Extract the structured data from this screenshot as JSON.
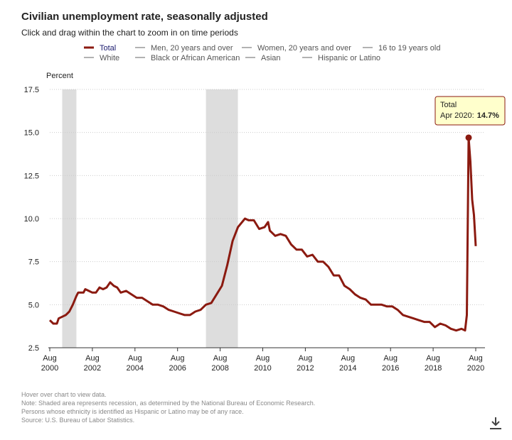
{
  "chart_data": {
    "type": "line",
    "title": "Civilian unemployment rate, seasonally adjusted",
    "subtitle": "Click and drag within the chart to zoom in on time periods",
    "y_label": "Percent",
    "x": [
      "2000-08",
      "2000-10",
      "2000-12",
      "2001-01",
      "2001-03",
      "2001-05",
      "2001-07",
      "2001-09",
      "2001-11",
      "2001-12",
      "2002-03",
      "2002-04",
      "2002-06",
      "2002-08",
      "2002-10",
      "2002-12",
      "2003-02",
      "2003-04",
      "2003-06",
      "2003-08",
      "2003-10",
      "2003-12",
      "2004-03",
      "2004-06",
      "2004-09",
      "2004-12",
      "2005-03",
      "2005-06",
      "2005-09",
      "2005-12",
      "2006-03",
      "2006-06",
      "2006-09",
      "2006-12",
      "2007-03",
      "2007-06",
      "2007-09",
      "2007-12",
      "2008-03",
      "2008-06",
      "2008-09",
      "2008-12",
      "2009-03",
      "2009-06",
      "2009-10",
      "2009-12",
      "2010-03",
      "2010-06",
      "2010-09",
      "2010-11",
      "2010-12",
      "2011-03",
      "2011-06",
      "2011-09",
      "2011-12",
      "2012-03",
      "2012-06",
      "2012-09",
      "2012-12",
      "2013-03",
      "2013-06",
      "2013-09",
      "2013-12",
      "2014-03",
      "2014-06",
      "2014-09",
      "2014-12",
      "2015-03",
      "2015-06",
      "2015-09",
      "2015-12",
      "2016-03",
      "2016-06",
      "2016-09",
      "2016-12",
      "2017-03",
      "2017-06",
      "2017-09",
      "2017-12",
      "2018-03",
      "2018-06",
      "2018-09",
      "2018-12",
      "2019-03",
      "2019-06",
      "2019-09",
      "2019-12",
      "2020-02",
      "2020-03",
      "2020-04",
      "2020-05",
      "2020-06",
      "2020-07",
      "2020-08"
    ],
    "series": [
      {
        "name": "Total",
        "color": "#8b1a10",
        "values": [
          4.1,
          3.9,
          3.9,
          4.2,
          4.3,
          4.4,
          4.6,
          5.0,
          5.5,
          5.7,
          5.7,
          5.9,
          5.8,
          5.7,
          5.7,
          6.0,
          5.9,
          6.0,
          6.3,
          6.1,
          6.0,
          5.7,
          5.8,
          5.6,
          5.4,
          5.4,
          5.2,
          5.0,
          5.0,
          4.9,
          4.7,
          4.6,
          4.5,
          4.4,
          4.4,
          4.6,
          4.7,
          5.0,
          5.1,
          5.6,
          6.1,
          7.3,
          8.7,
          9.5,
          10.0,
          9.9,
          9.9,
          9.4,
          9.5,
          9.8,
          9.3,
          9.0,
          9.1,
          9.0,
          8.5,
          8.2,
          8.2,
          7.8,
          7.9,
          7.5,
          7.5,
          7.2,
          6.7,
          6.7,
          6.1,
          5.9,
          5.6,
          5.4,
          5.3,
          5.0,
          5.0,
          5.0,
          4.9,
          4.9,
          4.7,
          4.4,
          4.3,
          4.2,
          4.1,
          4.0,
          4.0,
          3.7,
          3.9,
          3.8,
          3.6,
          3.5,
          3.6,
          3.5,
          4.4,
          14.7,
          13.3,
          11.1,
          10.2,
          8.4
        ]
      }
    ],
    "other_series": [
      {
        "name": "Men, 20 years and over",
        "color": "#999999"
      },
      {
        "name": "Women, 20 years and over",
        "color": "#999999"
      },
      {
        "name": "16 to 19 years old",
        "color": "#999999"
      },
      {
        "name": "White",
        "color": "#999999"
      },
      {
        "name": "Black or African American",
        "color": "#999999"
      },
      {
        "name": "Asian",
        "color": "#999999"
      },
      {
        "name": "Hispanic or Latino",
        "color": "#999999"
      }
    ],
    "recessions": [
      {
        "start": "2001-03",
        "end": "2001-11"
      },
      {
        "start": "2007-12",
        "end": "2009-06"
      }
    ],
    "recession_color": "#dddddd",
    "ylim": [
      2.5,
      17.5
    ],
    "yticks": [
      {
        "value": 2.5,
        "label": "2.5"
      },
      {
        "value": 5,
        "label": "5.0"
      },
      {
        "value": 7.5,
        "label": "7.5"
      },
      {
        "value": 10,
        "label": "10.0"
      },
      {
        "value": 12.5,
        "label": "12.5"
      },
      {
        "value": 15,
        "label": "15.0"
      },
      {
        "value": 17.5,
        "label": "17.5"
      }
    ],
    "xlim": [
      "2000-08",
      "2020-08"
    ],
    "xticks": [
      {
        "value": "2000-08",
        "label": "Aug 2000"
      },
      {
        "value": "2002-08",
        "label": "Aug 2002"
      },
      {
        "value": "2004-08",
        "label": "Aug 2004"
      },
      {
        "value": "2006-08",
        "label": "Aug 2006"
      },
      {
        "value": "2008-08",
        "label": "Aug 2008"
      },
      {
        "value": "2010-08",
        "label": "Aug 2010"
      },
      {
        "value": "2012-08",
        "label": "Aug 2012"
      },
      {
        "value": "2014-08",
        "label": "Aug 2014"
      },
      {
        "value": "2016-08",
        "label": "Aug 2016"
      },
      {
        "value": "2018-08",
        "label": "Aug 2018"
      },
      {
        "value": "2020-08",
        "label": "Aug 2020"
      }
    ],
    "grid": true,
    "tooltip": {
      "date": "Apr 2020:",
      "value_label": "14.7%"
    },
    "notes": [
      "Hover over chart to view data.",
      "Note: Shaded area represents recession, as determined by the National Bureau of Economic Research.",
      "Persons whose ethnicity is identified as Hispanic or Latino may be of any race.",
      "Source: U.S. Bureau of Labor Statistics."
    ]
  }
}
